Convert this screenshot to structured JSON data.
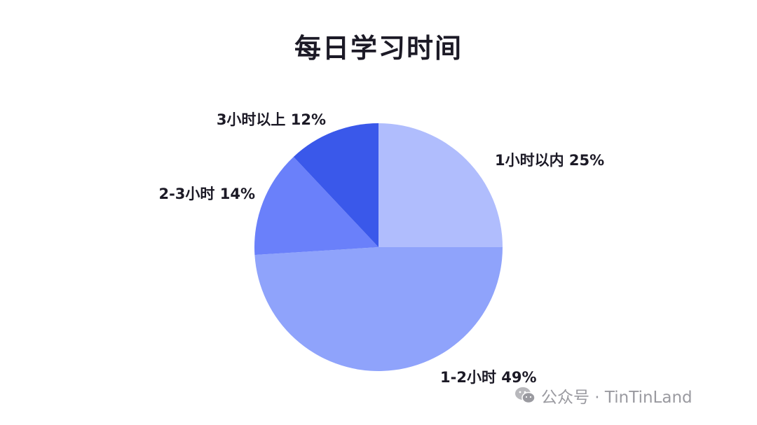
{
  "chart_data": {
    "type": "pie",
    "title": "每日学习时间",
    "slices": [
      {
        "label": "1小时以内 25%",
        "name": "1小时以内",
        "value": 25,
        "color": "#b0bdfd"
      },
      {
        "label": "1-2小时 49%",
        "name": "1-2小时",
        "value": 49,
        "color": "#8fa3fb"
      },
      {
        "label": "2-3小时 14%",
        "name": "2-3小时",
        "value": 14,
        "color": "#6a80fa"
      },
      {
        "label": "3小时以上 12%",
        "name": "3小时以上",
        "value": 12,
        "color": "#3a58ea"
      }
    ],
    "start_angle": "12 o'clock",
    "direction": "clockwise",
    "legend": "none"
  },
  "watermark": {
    "text": "公众号 · TinTinLand",
    "icon": "wechat-icon"
  }
}
